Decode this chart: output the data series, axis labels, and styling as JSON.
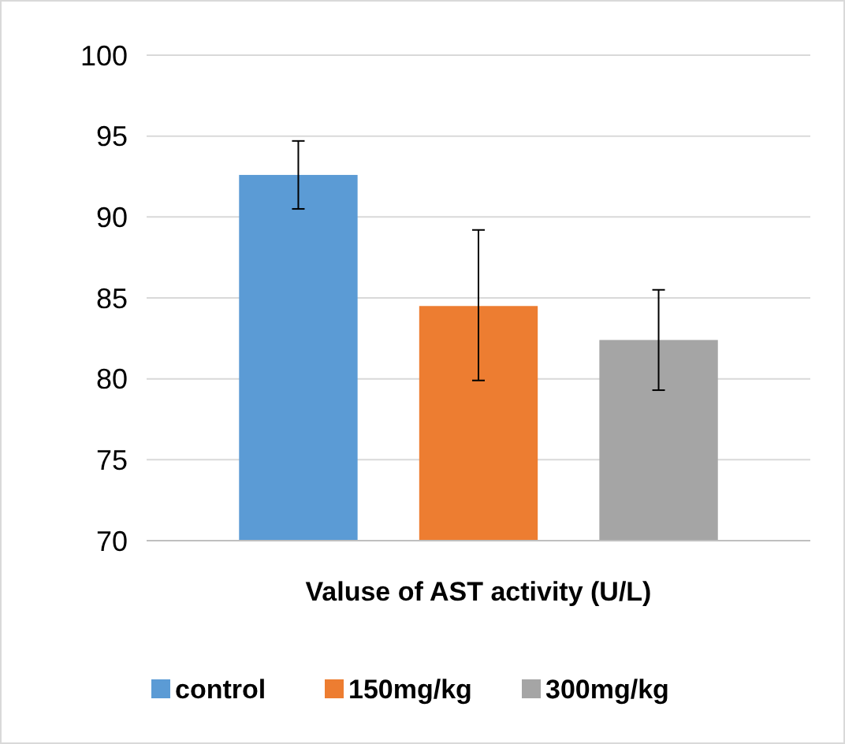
{
  "chart_data": {
    "type": "bar",
    "xlabel": "Valuse of AST activity (U/L)",
    "categories": [
      null
    ],
    "series": [
      {
        "name": "control",
        "color": "#5b9bd5",
        "values": [
          92.6
        ],
        "errors": [
          [
            90.5,
            94.7
          ]
        ]
      },
      {
        "name": "150mg/kg",
        "color": "#ed7d31",
        "values": [
          84.5
        ],
        "errors": [
          [
            79.9,
            89.2
          ]
        ]
      },
      {
        "name": "300mg/kg",
        "color": "#a5a5a5",
        "values": [
          82.4
        ],
        "errors": [
          [
            79.3,
            85.5
          ]
        ]
      }
    ],
    "ylim": [
      70,
      100
    ],
    "yticks": [
      70,
      75,
      80,
      85,
      90,
      95,
      100
    ],
    "grid": "y",
    "legend": "bottom"
  }
}
